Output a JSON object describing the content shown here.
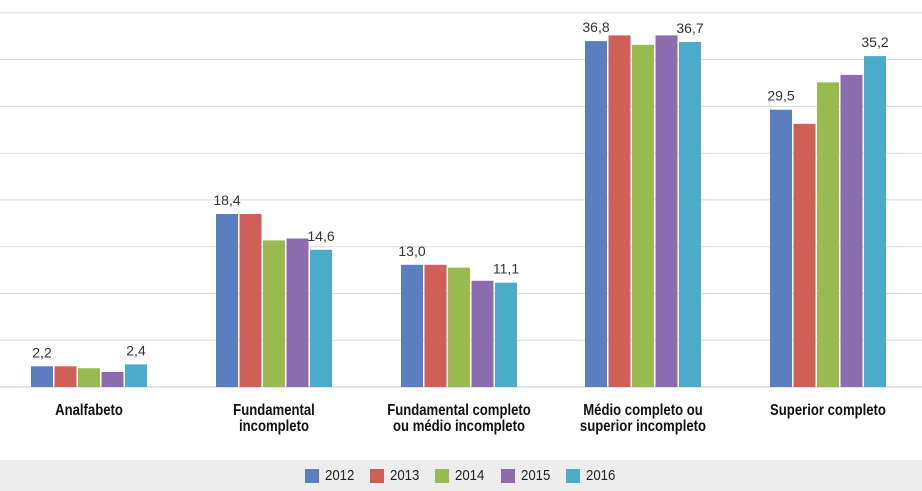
{
  "chart_data": {
    "type": "bar",
    "title": "",
    "xlabel": "",
    "ylabel": "",
    "ylim": [
      0,
      40
    ],
    "grid": true,
    "legend_position": "bottom",
    "categories": [
      "Analfabeto",
      "Fundamental\nincompleto",
      "Fundamental completo\nou médio incompleto",
      "Médio completo ou\nsuperior incompleto",
      "Superior completo"
    ],
    "series": [
      {
        "name": "2012",
        "color": "#5a7ebf",
        "values": [
          2.2,
          18.4,
          13.0,
          36.8,
          29.5
        ]
      },
      {
        "name": "2013",
        "color": "#cf5f57",
        "values": [
          2.2,
          18.4,
          13.0,
          37.4,
          28.0
        ]
      },
      {
        "name": "2014",
        "color": "#98ba4f",
        "values": [
          2.0,
          15.6,
          12.7,
          36.4,
          32.4
        ]
      },
      {
        "name": "2015",
        "color": "#8b6cae",
        "values": [
          1.6,
          15.8,
          11.3,
          37.4,
          33.2
        ]
      },
      {
        "name": "2016",
        "color": "#4bacc9",
        "values": [
          2.4,
          14.6,
          11.1,
          36.7,
          35.2
        ]
      }
    ],
    "data_labels": [
      {
        "category": 0,
        "series": 0,
        "text": "2,2"
      },
      {
        "category": 0,
        "series": 4,
        "text": "2,4"
      },
      {
        "category": 1,
        "series": 0,
        "text": "18,4"
      },
      {
        "category": 1,
        "series": 4,
        "text": "14,6"
      },
      {
        "category": 2,
        "series": 0,
        "text": "13,0"
      },
      {
        "category": 2,
        "series": 4,
        "text": "11,1"
      },
      {
        "category": 3,
        "series": 0,
        "text": "36,8"
      },
      {
        "category": 3,
        "series": 4,
        "text": "36,7"
      },
      {
        "category": 4,
        "series": 0,
        "text": "29,5"
      },
      {
        "category": 4,
        "series": 4,
        "text": "35,2"
      }
    ]
  }
}
